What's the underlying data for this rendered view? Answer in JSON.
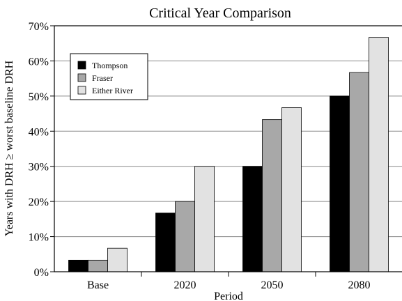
{
  "chart_data": {
    "type": "bar",
    "title": "Critical Year Comparison",
    "xlabel": "Period",
    "ylabel": "Years with DRH ≥ worst baseline DRH",
    "categories": [
      "Base",
      "2020",
      "2050",
      "2080"
    ],
    "series": [
      {
        "name": "Thompson",
        "color": "#000000",
        "values": [
          3.3,
          16.7,
          30.0,
          50.0
        ]
      },
      {
        "name": "Fraser",
        "color": "#a8a8a8",
        "values": [
          3.3,
          20.0,
          43.3,
          56.7
        ]
      },
      {
        "name": "Either River",
        "color": "#e2e2e2",
        "values": [
          6.7,
          30.0,
          46.7,
          66.7
        ]
      }
    ],
    "ylim": [
      0,
      70
    ],
    "yticks": [
      0,
      10,
      20,
      30,
      40,
      50,
      60,
      70
    ],
    "ytick_labels": [
      "0%",
      "10%",
      "20%",
      "30%",
      "40%",
      "50%",
      "60%",
      "70%"
    ],
    "grid": true,
    "legend_position": "top-left"
  }
}
